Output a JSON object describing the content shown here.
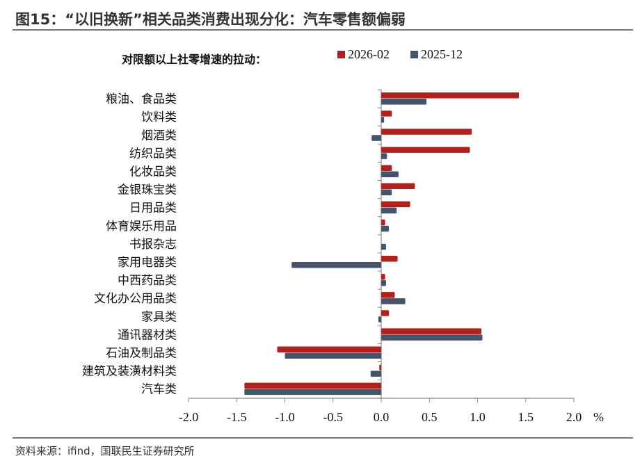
{
  "title": "图15：“以旧换新”相关品类消费出现分化：汽车零售额偏弱",
  "source": "资料来源：ifind，国联民生证券研究所",
  "chart_data": {
    "type": "bar",
    "orientation": "horizontal",
    "title": "对限额以上社零增速的拉动：",
    "xlabel": "%",
    "xlim": [
      -2.0,
      2.0
    ],
    "xticks": [
      "-2.0",
      "-1.5",
      "-1.0",
      "-0.5",
      "0.0",
      "0.5",
      "1.0",
      "1.5",
      "2.0"
    ],
    "legend": "top",
    "categories": [
      "粮油、食品类",
      "饮料类",
      "烟酒类",
      "纺织品类",
      "化妆品类",
      "金银珠宝类",
      "日用品类",
      "体育娱乐用品",
      "书报杂志",
      "家用电器类",
      "中西药品类",
      "文化办公用品类",
      "家具类",
      "通讯器材类",
      "石油及制品类",
      "建筑及装潢材料类",
      "汽车类"
    ],
    "series": [
      {
        "name": "2026-02",
        "color": "#b31f1a",
        "values": [
          1.43,
          0.11,
          0.94,
          0.92,
          0.11,
          0.35,
          0.3,
          0.04,
          0.0,
          0.17,
          0.04,
          0.14,
          0.08,
          1.04,
          -1.08,
          -0.02,
          -1.42
        ]
      },
      {
        "name": "2025-12",
        "color": "#44546a",
        "values": [
          0.47,
          0.03,
          -0.1,
          0.06,
          0.18,
          0.11,
          0.16,
          0.08,
          0.05,
          -0.93,
          0.05,
          0.25,
          -0.03,
          1.05,
          -1.0,
          -0.11,
          -1.42
        ]
      }
    ]
  }
}
